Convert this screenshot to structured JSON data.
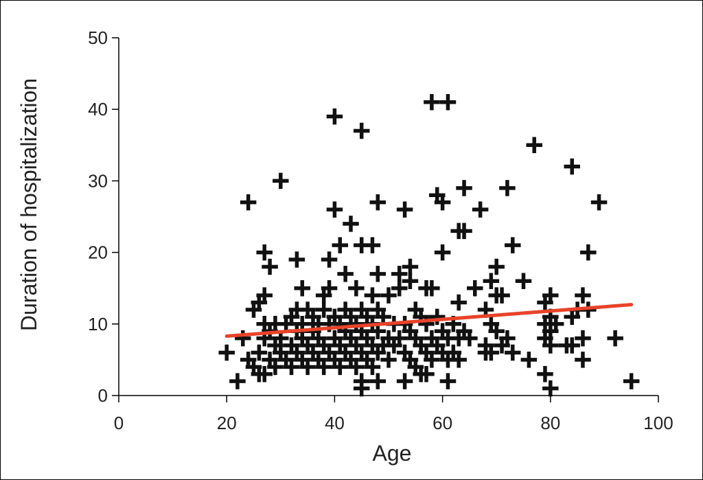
{
  "chart_data": {
    "type": "scatter",
    "title": "",
    "xlabel": "Age",
    "ylabel": "Duration of hospitalization",
    "xlim": [
      0,
      100
    ],
    "ylim": [
      0,
      50
    ],
    "xticks": [
      "0",
      "20",
      "40",
      "60",
      "80",
      "100"
    ],
    "yticks": [
      "0",
      "10",
      "20",
      "30",
      "40",
      "50"
    ],
    "grid": false,
    "legend": "none",
    "marker": "plus",
    "marker_color": "#111111",
    "trend_line": {
      "x": [
        20,
        95
      ],
      "y": [
        8.3,
        12.7
      ],
      "color": "#e8432a"
    },
    "points": [
      [
        20,
        6
      ],
      [
        22,
        2
      ],
      [
        23,
        8
      ],
      [
        24,
        27
      ],
      [
        24,
        5
      ],
      [
        25,
        4
      ],
      [
        25,
        12
      ],
      [
        26,
        13
      ],
      [
        26,
        3
      ],
      [
        26,
        6
      ],
      [
        27,
        14
      ],
      [
        27,
        20
      ],
      [
        27,
        10
      ],
      [
        27,
        8
      ],
      [
        27,
        3
      ],
      [
        28,
        18
      ],
      [
        28,
        5
      ],
      [
        28,
        9
      ],
      [
        29,
        10
      ],
      [
        29,
        7
      ],
      [
        29,
        4
      ],
      [
        30,
        30
      ],
      [
        30,
        8
      ],
      [
        30,
        6
      ],
      [
        31,
        10
      ],
      [
        31,
        5
      ],
      [
        32,
        11
      ],
      [
        32,
        7
      ],
      [
        32,
        4
      ],
      [
        33,
        19
      ],
      [
        33,
        12
      ],
      [
        33,
        9
      ],
      [
        33,
        6
      ],
      [
        34,
        15
      ],
      [
        34,
        10
      ],
      [
        34,
        8
      ],
      [
        34,
        5
      ],
      [
        35,
        12
      ],
      [
        35,
        7
      ],
      [
        35,
        4
      ],
      [
        36,
        11
      ],
      [
        36,
        9
      ],
      [
        36,
        6
      ],
      [
        37,
        10
      ],
      [
        37,
        8
      ],
      [
        37,
        5
      ],
      [
        38,
        12
      ],
      [
        38,
        14
      ],
      [
        38,
        7
      ],
      [
        38,
        4
      ],
      [
        39,
        19
      ],
      [
        39,
        15
      ],
      [
        39,
        10
      ],
      [
        39,
        6
      ],
      [
        40,
        39
      ],
      [
        40,
        26
      ],
      [
        40,
        11
      ],
      [
        40,
        8
      ],
      [
        40,
        5
      ],
      [
        41,
        21
      ],
      [
        41,
        10
      ],
      [
        41,
        7
      ],
      [
        41,
        4
      ],
      [
        42,
        17
      ],
      [
        42,
        12
      ],
      [
        42,
        9
      ],
      [
        42,
        6
      ],
      [
        43,
        24
      ],
      [
        43,
        11
      ],
      [
        43,
        8
      ],
      [
        43,
        5
      ],
      [
        44,
        15
      ],
      [
        44,
        10
      ],
      [
        44,
        7
      ],
      [
        44,
        4
      ],
      [
        45,
        37
      ],
      [
        45,
        21
      ],
      [
        45,
        12
      ],
      [
        45,
        9
      ],
      [
        45,
        6
      ],
      [
        45,
        2
      ],
      [
        45,
        1
      ],
      [
        46,
        11
      ],
      [
        46,
        8
      ],
      [
        46,
        5
      ],
      [
        47,
        21
      ],
      [
        47,
        14
      ],
      [
        47,
        10
      ],
      [
        47,
        7
      ],
      [
        47,
        4
      ],
      [
        48,
        27
      ],
      [
        48,
        17
      ],
      [
        48,
        12
      ],
      [
        48,
        9
      ],
      [
        48,
        6
      ],
      [
        48,
        2
      ],
      [
        49,
        11
      ],
      [
        49,
        7
      ],
      [
        50,
        14
      ],
      [
        50,
        8
      ],
      [
        50,
        5
      ],
      [
        51,
        10
      ],
      [
        51,
        7
      ],
      [
        52,
        17
      ],
      [
        52,
        15
      ],
      [
        52,
        8
      ],
      [
        53,
        26
      ],
      [
        53,
        10
      ],
      [
        53,
        6
      ],
      [
        53,
        2
      ],
      [
        54,
        18
      ],
      [
        54,
        16
      ],
      [
        54,
        9
      ],
      [
        54,
        5
      ],
      [
        55,
        12
      ],
      [
        55,
        8
      ],
      [
        55,
        4
      ],
      [
        56,
        11
      ],
      [
        56,
        7
      ],
      [
        56,
        3
      ],
      [
        57,
        15
      ],
      [
        57,
        10
      ],
      [
        57,
        6
      ],
      [
        57,
        3
      ],
      [
        58,
        41
      ],
      [
        58,
        15
      ],
      [
        58,
        8
      ],
      [
        58,
        5
      ],
      [
        59,
        28
      ],
      [
        59,
        11
      ],
      [
        59,
        7
      ],
      [
        60,
        27
      ],
      [
        60,
        20
      ],
      [
        60,
        9
      ],
      [
        60,
        6
      ],
      [
        61,
        41
      ],
      [
        61,
        8
      ],
      [
        61,
        5
      ],
      [
        61,
        2
      ],
      [
        62,
        10
      ],
      [
        62,
        6
      ],
      [
        63,
        23
      ],
      [
        63,
        13
      ],
      [
        63,
        8
      ],
      [
        63,
        5
      ],
      [
        64,
        29
      ],
      [
        64,
        23
      ],
      [
        64,
        9
      ],
      [
        65,
        8
      ],
      [
        66,
        15
      ],
      [
        67,
        26
      ],
      [
        68,
        12
      ],
      [
        68,
        7
      ],
      [
        68,
        6
      ],
      [
        69,
        16
      ],
      [
        69,
        10
      ],
      [
        69,
        6
      ],
      [
        70,
        18
      ],
      [
        70,
        14
      ],
      [
        70,
        9
      ],
      [
        71,
        14
      ],
      [
        71,
        7
      ],
      [
        72,
        29
      ],
      [
        72,
        8
      ],
      [
        73,
        21
      ],
      [
        73,
        6
      ],
      [
        75,
        16
      ],
      [
        76,
        5
      ],
      [
        77,
        35
      ],
      [
        79,
        13
      ],
      [
        79,
        10
      ],
      [
        79,
        8
      ],
      [
        79,
        3
      ],
      [
        80,
        14
      ],
      [
        80,
        11
      ],
      [
        80,
        9
      ],
      [
        80,
        7
      ],
      [
        80,
        1
      ],
      [
        81,
        10
      ],
      [
        83,
        7
      ],
      [
        84,
        32
      ],
      [
        84,
        11
      ],
      [
        84,
        7
      ],
      [
        85,
        12
      ],
      [
        86,
        14
      ],
      [
        86,
        8
      ],
      [
        86,
        5
      ],
      [
        87,
        20
      ],
      [
        87,
        12
      ],
      [
        89,
        27
      ],
      [
        92,
        8
      ],
      [
        95,
        2
      ]
    ]
  }
}
